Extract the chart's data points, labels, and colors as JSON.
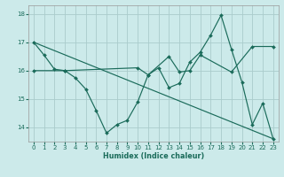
{
  "title": "",
  "xlabel": "Humidex (Indice chaleur)",
  "background_color": "#cceaea",
  "grid_color": "#aacccc",
  "line_color": "#1a6b5a",
  "ylim": [
    13.5,
    18.3
  ],
  "xlim": [
    -0.5,
    23.5
  ],
  "yticks": [
    14,
    15,
    16,
    17,
    18
  ],
  "xticks": [
    0,
    1,
    2,
    3,
    4,
    5,
    6,
    7,
    8,
    9,
    10,
    11,
    12,
    13,
    14,
    15,
    16,
    17,
    18,
    19,
    20,
    21,
    22,
    23
  ],
  "line1_x": [
    0,
    1,
    2,
    3,
    4,
    5,
    6,
    7,
    8,
    9,
    10,
    11,
    12,
    13,
    14,
    15,
    16,
    17,
    18,
    19,
    20,
    21,
    22,
    23
  ],
  "line1_y": [
    17.0,
    16.55,
    16.05,
    16.0,
    15.75,
    15.35,
    14.6,
    13.8,
    14.1,
    14.25,
    14.9,
    15.85,
    16.1,
    15.4,
    15.55,
    16.3,
    16.65,
    17.25,
    17.95,
    16.75,
    15.6,
    14.1,
    14.85,
    13.6
  ],
  "line2_x": [
    0,
    3,
    10,
    11,
    13,
    14,
    15,
    16,
    19,
    21,
    23
  ],
  "line2_y": [
    16.0,
    16.0,
    16.1,
    15.85,
    16.5,
    15.95,
    16.0,
    16.55,
    15.95,
    16.85,
    16.85
  ],
  "line3_x": [
    0,
    23
  ],
  "line3_y": [
    17.0,
    13.6
  ]
}
